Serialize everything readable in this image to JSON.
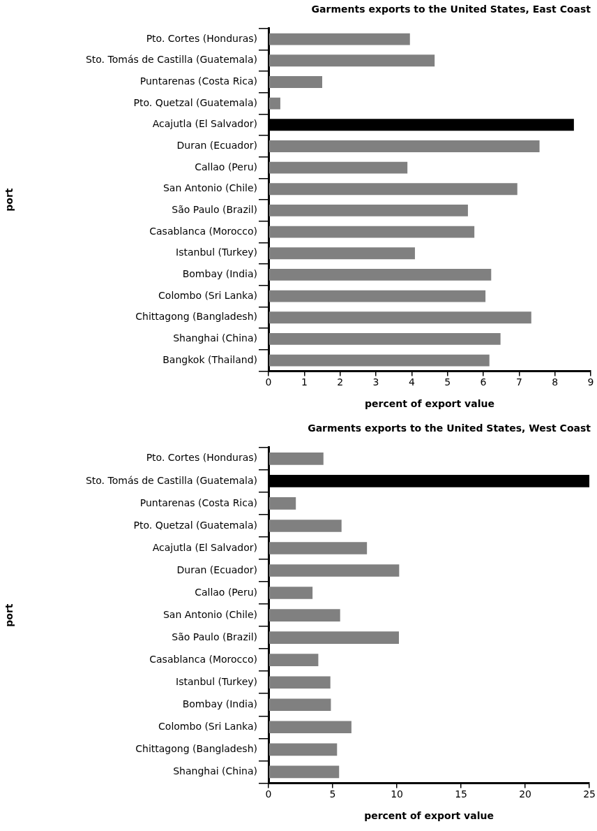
{
  "chart_data": [
    {
      "type": "bar",
      "orientation": "horizontal",
      "title": "Garments exports to the United States, East Coast",
      "xlabel": "percent of export value",
      "ylabel": "port",
      "categories": [
        "Pto. Cortes (Honduras)",
        "Sto. Tomás de Castilla (Guatemala)",
        "Puntarenas (Costa Rica)",
        "Pto. Quetzal (Guatemala)",
        "Acajutla (El Salvador)",
        "Duran (Ecuador)",
        "Callao (Peru)",
        "San Antonio (Chile)",
        "São Paulo (Brazil)",
        "Casablanca (Morocco)",
        "Istanbul (Turkey)",
        "Bombay (India)",
        "Colombo (Sri Lanka)",
        "Chittagong (Bangladesh)",
        "Shanghai (China)",
        "Bangkok (Thailand)"
      ],
      "values": [
        3.95,
        4.64,
        1.5,
        0.33,
        8.53,
        7.57,
        3.88,
        6.95,
        5.57,
        5.75,
        4.09,
        6.22,
        6.06,
        7.34,
        6.48,
        6.17
      ],
      "colors": [
        "#808080",
        "#808080",
        "#808080",
        "#808080",
        "#000000",
        "#808080",
        "#808080",
        "#808080",
        "#808080",
        "#808080",
        "#808080",
        "#808080",
        "#808080",
        "#808080",
        "#808080",
        "#808080"
      ],
      "xlim": [
        0,
        9
      ],
      "xticks": [
        0,
        1,
        2,
        3,
        4,
        5,
        6,
        7,
        8,
        9
      ]
    },
    {
      "type": "bar",
      "orientation": "horizontal",
      "title": "Garments exports to the United States, West Coast",
      "xlabel": "percent of export value",
      "ylabel": "port",
      "categories": [
        "Pto. Cortes (Honduras)",
        "Sto. Tomás de Castilla (Guatemala)",
        "Puntarenas (Costa Rica)",
        "Pto. Quetzal (Guatemala)",
        "Acajutla (El Salvador)",
        "Duran (Ecuador)",
        "Callao (Peru)",
        "San Antonio (Chile)",
        "São Paulo (Brazil)",
        "Casablanca (Morocco)",
        "Istanbul (Turkey)",
        "Bombay (India)",
        "Colombo (Sri Lanka)",
        "Chittagong (Bangladesh)",
        "Shanghai (China)"
      ],
      "values": [
        4.28,
        25,
        2.13,
        5.69,
        7.67,
        10.18,
        3.43,
        5.58,
        10.16,
        3.88,
        4.82,
        4.86,
        6.46,
        5.34,
        5.5
      ],
      "colors": [
        "#808080",
        "#000000",
        "#808080",
        "#808080",
        "#808080",
        "#808080",
        "#808080",
        "#808080",
        "#808080",
        "#808080",
        "#808080",
        "#808080",
        "#808080",
        "#808080",
        "#808080"
      ],
      "xlim": [
        0,
        25
      ],
      "xticks": [
        0,
        5,
        10,
        15,
        20,
        25
      ]
    }
  ]
}
